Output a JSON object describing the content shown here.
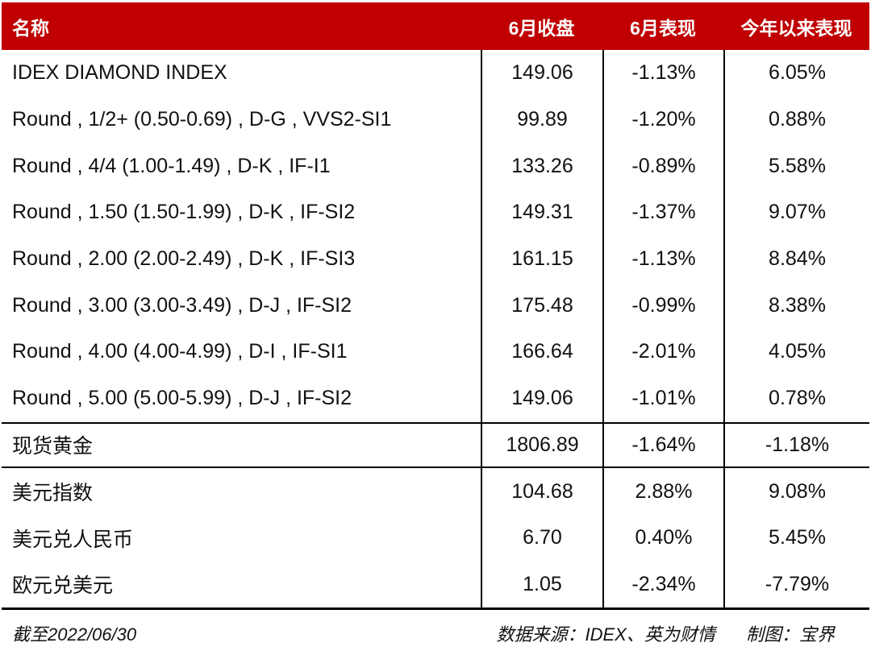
{
  "colors": {
    "header_bg": "#C00000",
    "header_text": "#FFFFFF",
    "body_text": "#111111",
    "line": "#000000"
  },
  "header": {
    "columns": [
      "名称",
      "6月收盘",
      "6月表现",
      "今年以来表现"
    ]
  },
  "chart_data": {
    "type": "table",
    "columns": [
      "名称",
      "6月收盘",
      "6月表现",
      "今年以来表现"
    ],
    "rows": [
      {
        "name": "IDEX DIAMOND INDEX",
        "close": "149.06",
        "month_change": "-1.13%",
        "ytd_change": "6.05%"
      },
      {
        "name": "Round , 1/2+ (0.50-0.69) , D-G , VVS2-SI1",
        "close": "99.89",
        "month_change": "-1.20%",
        "ytd_change": "0.88%"
      },
      {
        "name": "Round , 4/4 (1.00-1.49) , D-K , IF-I1",
        "close": "133.26",
        "month_change": "-0.89%",
        "ytd_change": "5.58%"
      },
      {
        "name": "Round , 1.50 (1.50-1.99) , D-K , IF-SI2",
        "close": "149.31",
        "month_change": "-1.37%",
        "ytd_change": "9.07%"
      },
      {
        "name": "Round , 2.00 (2.00-2.49) , D-K , IF-SI3",
        "close": "161.15",
        "month_change": "-1.13%",
        "ytd_change": "8.84%"
      },
      {
        "name": "Round , 3.00 (3.00-3.49) , D-J , IF-SI2",
        "close": "175.48",
        "month_change": "-0.99%",
        "ytd_change": "8.38%"
      },
      {
        "name": "Round , 4.00 (4.00-4.99) , D-I , IF-SI1",
        "close": "166.64",
        "month_change": "-2.01%",
        "ytd_change": "4.05%"
      },
      {
        "name": "Round , 5.00 (5.00-5.99) , D-J , IF-SI2",
        "close": "149.06",
        "month_change": "-1.01%",
        "ytd_change": "0.78%"
      },
      {
        "name": "现货黄金",
        "close": "1806.89",
        "month_change": "-1.64%",
        "ytd_change": "-1.18%"
      },
      {
        "name": "美元指数",
        "close": "104.68",
        "month_change": "2.88%",
        "ytd_change": "9.08%"
      },
      {
        "name": "美元兑人民币",
        "close": "6.70",
        "month_change": "0.40%",
        "ytd_change": "5.45%"
      },
      {
        "name": "欧元兑美元",
        "close": "1.05",
        "month_change": "-2.34%",
        "ytd_change": "-7.79%"
      }
    ]
  },
  "footer": {
    "as_of": "截至2022/06/30",
    "source": "数据来源：IDEX、英为财情",
    "credit": "制图：宝界"
  }
}
